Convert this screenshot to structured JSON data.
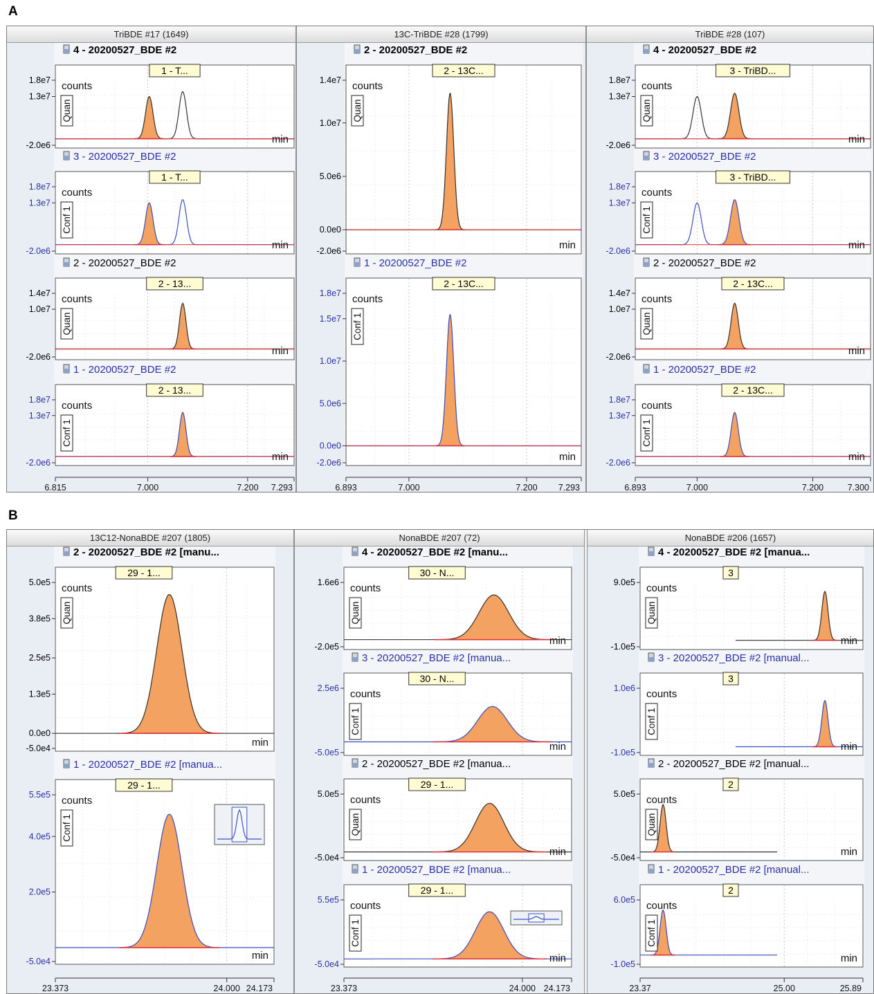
{
  "section_labels": [
    "A",
    "B"
  ],
  "colors": {
    "fill": "#f4a261",
    "fill_stroke": "#c9621e",
    "baseline": "#e0303a",
    "blue_trace": "#3a4fc2",
    "black_trace": "#333333",
    "blue_text": "#2b2fa8",
    "label_bg": "#fffbd2"
  },
  "icons": [
    "vial-icon",
    "mini-peak-thumbnail-icon"
  ],
  "chart_data": [
    {
      "type": "line",
      "section": "A",
      "title": "TriBDE #17 (1649)",
      "x_ticks": [
        "6.815",
        "7.000",
        "7.200",
        "7.293"
      ],
      "xlim": [
        6.815,
        7.293
      ],
      "panels": [
        {
          "sample": "4 - 20200527_BDE #2",
          "sample_bold": true,
          "sample_color": "#000000",
          "tag": "1 - T...",
          "ion": "Quan",
          "ylabel": "counts",
          "xunit": "min",
          "y_ticks": [
            "1.8e7",
            "1.3e7",
            "-2.0e6"
          ],
          "ylim": [
            -2000000,
            18000000
          ],
          "tick_color": "#000000",
          "trace": "black",
          "peaks": [
            {
              "x": 7.003,
              "height": 13000000,
              "sigma": 0.0075,
              "filled": true
            },
            {
              "x": 7.07,
              "height": 14500000,
              "sigma": 0.0075,
              "filled": false
            }
          ]
        },
        {
          "sample": "3 - 20200527_BDE #2",
          "sample_bold": false,
          "sample_color": "#2b2fa8",
          "tag": "1 - T...",
          "ion": "Conf 1",
          "ylabel": "counts",
          "xunit": "min",
          "y_ticks": [
            "1.8e7",
            "1.3e7",
            "-2.0e6"
          ],
          "ylim": [
            -2000000,
            18000000
          ],
          "tick_color": "#2b2fa8",
          "trace": "blue",
          "peaks": [
            {
              "x": 7.003,
              "height": 13000000,
              "sigma": 0.0075,
              "filled": true
            },
            {
              "x": 7.07,
              "height": 14000000,
              "sigma": 0.0075,
              "filled": false
            }
          ]
        },
        {
          "sample": "2 - 20200527_BDE #2",
          "sample_bold": false,
          "sample_color": "#000000",
          "tag": "2 - 13...",
          "ion": "Quan",
          "ylabel": "counts",
          "xunit": "min",
          "y_ticks": [
            "1.4e7",
            "1.0e7",
            "-2.0e6"
          ],
          "ylim": [
            -2000000,
            14000000
          ],
          "tick_color": "#000000",
          "trace": "black",
          "peaks": [
            {
              "x": 7.07,
              "height": 11500000,
              "sigma": 0.0065,
              "filled": true
            }
          ]
        },
        {
          "sample": "1 - 20200527_BDE #2",
          "sample_bold": false,
          "sample_color": "#2b2fa8",
          "tag": "2 - 13...",
          "ion": "Conf 1",
          "ylabel": "counts",
          "xunit": "min",
          "y_ticks": [
            "1.8e7",
            "1.3e7",
            "-2.0e6"
          ],
          "ylim": [
            -2000000,
            18000000
          ],
          "tick_color": "#2b2fa8",
          "trace": "blue",
          "peaks": [
            {
              "x": 7.07,
              "height": 14000000,
              "sigma": 0.0065,
              "filled": true
            }
          ]
        }
      ]
    },
    {
      "type": "line",
      "section": "A",
      "title": "13C-TriBDE #28 (1799)",
      "x_ticks": [
        "6.893",
        "7.000",
        "7.200",
        "7.293"
      ],
      "xlim": [
        6.893,
        7.293
      ],
      "panels": [
        {
          "sample": "2 - 20200527_BDE #2",
          "sample_bold": true,
          "sample_color": "#000000",
          "tag": "2 - 13C...",
          "ion": "Quan",
          "ylabel": "counts",
          "xunit": "min",
          "y_ticks": [
            "1.4e7",
            "1.0e7",
            "5.0e6",
            "0.0e0",
            "-2.0e6"
          ],
          "ylim": [
            -2000000,
            14000000
          ],
          "tick_color": "#000000",
          "trace": "black",
          "peaks": [
            {
              "x": 7.07,
              "height": 12800000,
              "sigma": 0.0062,
              "filled": true
            }
          ]
        },
        {
          "sample": "1 - 20200527_BDE #2",
          "sample_bold": false,
          "sample_color": "#2b2fa8",
          "tag": "2 - 13C...",
          "ion": "Conf 1",
          "ylabel": "counts",
          "xunit": "min",
          "y_ticks": [
            "1.8e7",
            "1.5e7",
            "1.0e7",
            "5.0e6",
            "0.0e0",
            "-2.0e6"
          ],
          "ylim": [
            -2000000,
            18000000
          ],
          "tick_color": "#2b2fa8",
          "trace": "blue",
          "peaks": [
            {
              "x": 7.07,
              "height": 15500000,
              "sigma": 0.0062,
              "filled": true
            }
          ]
        }
      ]
    },
    {
      "type": "line",
      "section": "A",
      "title": "TriBDE #28 (107)",
      "x_ticks": [
        "6.893",
        "7.000",
        "7.200",
        "7.300"
      ],
      "xlim": [
        6.893,
        7.3
      ],
      "panels": [
        {
          "sample": "4 - 20200527_BDE #2",
          "sample_bold": true,
          "sample_color": "#000000",
          "tag": "3 - TriBD...",
          "ion": "Quan",
          "ylabel": "counts",
          "xunit": "min",
          "y_ticks": [
            "1.8e7",
            "1.3e7",
            "-2.0e6"
          ],
          "ylim": [
            -2000000,
            18000000
          ],
          "tick_color": "#000000",
          "trace": "black",
          "peaks": [
            {
              "x": 7.0,
              "height": 13000000,
              "sigma": 0.0072,
              "filled": false
            },
            {
              "x": 7.065,
              "height": 14000000,
              "sigma": 0.0072,
              "filled": true
            }
          ]
        },
        {
          "sample": "3 - 20200527_BDE #2",
          "sample_bold": false,
          "sample_color": "#2b2fa8",
          "tag": "3 - TriBD...",
          "ion": "Conf 1",
          "ylabel": "counts",
          "xunit": "min",
          "y_ticks": [
            "1.8e7",
            "1.3e7",
            "-2.0e6"
          ],
          "ylim": [
            -2000000,
            18000000
          ],
          "tick_color": "#2b2fa8",
          "trace": "blue",
          "peaks": [
            {
              "x": 7.0,
              "height": 13000000,
              "sigma": 0.0072,
              "filled": false
            },
            {
              "x": 7.065,
              "height": 14000000,
              "sigma": 0.0072,
              "filled": true
            }
          ]
        },
        {
          "sample": "2 - 20200527_BDE #2",
          "sample_bold": false,
          "sample_color": "#000000",
          "tag": "2 - 13C...",
          "ion": "Quan",
          "ylabel": "counts",
          "xunit": "min",
          "y_ticks": [
            "1.4e7",
            "1.0e7",
            "-2.0e6"
          ],
          "ylim": [
            -2000000,
            14000000
          ],
          "tick_color": "#000000",
          "trace": "black",
          "peaks": [
            {
              "x": 7.065,
              "height": 11500000,
              "sigma": 0.0062,
              "filled": true
            }
          ]
        },
        {
          "sample": "1 - 20200527_BDE #2",
          "sample_bold": false,
          "sample_color": "#2b2fa8",
          "tag": "2 - 13C...",
          "ion": "Conf 1",
          "ylabel": "counts",
          "xunit": "min",
          "y_ticks": [
            "1.8e7",
            "1.3e7",
            "-2.0e6"
          ],
          "ylim": [
            -2000000,
            18000000
          ],
          "tick_color": "#2b2fa8",
          "trace": "blue",
          "peaks": [
            {
              "x": 7.065,
              "height": 14000000,
              "sigma": 0.0062,
              "filled": true
            }
          ]
        }
      ]
    },
    {
      "type": "line",
      "section": "B",
      "title": "13C12-NonaBDE  #207 (1805)",
      "x_ticks": [
        "23.373",
        "24.000",
        "24.173"
      ],
      "xlim": [
        23.373,
        24.173
      ],
      "panels": [
        {
          "sample": "2 - 20200527_BDE #2 [manu...",
          "sample_bold": true,
          "sample_color": "#000000",
          "tag": "29 - 1...",
          "ion": "Quan",
          "ylabel": "counts",
          "xunit": "min",
          "y_ticks": [
            "5.0e5",
            "3.8e5",
            "2.5e5",
            "1.3e5",
            "0.0e0",
            "-5.0e4"
          ],
          "ylim": [
            -50000,
            500000
          ],
          "tick_color": "#000000",
          "trace": "black",
          "thumbnail": false,
          "peaks": [
            {
              "x": 23.79,
              "height": 460000,
              "sigma": 0.046,
              "filled": true
            }
          ]
        },
        {
          "sample": "1 - 20200527_BDE #2 [manua...",
          "sample_bold": false,
          "sample_color": "#2b2fa8",
          "tag": "29 - 1...",
          "ion": "Conf 1",
          "ylabel": "counts",
          "xunit": "min",
          "y_ticks": [
            "5.5e5",
            "4.0e5",
            "2.0e5",
            "-5.0e4"
          ],
          "ylim": [
            -50000,
            550000
          ],
          "tick_color": "#2b2fa8",
          "trace": "blue",
          "thumbnail": true,
          "peaks": [
            {
              "x": 23.79,
              "height": 480000,
              "sigma": 0.046,
              "filled": true
            }
          ]
        }
      ]
    },
    {
      "type": "line",
      "section": "B",
      "title": "NonaBDE #207 (72)",
      "x_ticks": [
        "23.373",
        "24.000",
        "24.173"
      ],
      "xlim": [
        23.373,
        24.173
      ],
      "panels": [
        {
          "sample": "4 - 20200527_BDE #2 [manu...",
          "sample_bold": true,
          "sample_color": "#000000",
          "tag": "30 - N...",
          "ion": "Quan",
          "ylabel": "counts",
          "xunit": "min",
          "y_ticks": [
            "1.6e6",
            "-2.0e5"
          ],
          "ylim": [
            -200000,
            1600000
          ],
          "tick_color": "#000000",
          "trace": "black",
          "thumbnail": false,
          "peaks": [
            {
              "x": 23.9,
              "height": 1250000,
              "sigma": 0.052,
              "filled": true
            }
          ]
        },
        {
          "sample": "3 - 20200527_BDE #2 [manua...",
          "sample_bold": false,
          "sample_color": "#2b2fa8",
          "tag": "30 - N...",
          "ion": "Conf 1",
          "ylabel": "counts",
          "xunit": "min",
          "y_ticks": [
            "2.5e6",
            "-5.0e5"
          ],
          "ylim": [
            -500000,
            2500000
          ],
          "tick_color": "#2b2fa8",
          "trace": "blue",
          "thumbnail": false,
          "peaks": [
            {
              "x": 23.895,
              "height": 1650000,
              "sigma": 0.052,
              "filled": true
            }
          ]
        },
        {
          "sample": "2 - 20200527_BDE #2 [manua...",
          "sample_bold": false,
          "sample_color": "#000000",
          "tag": "29 - 1...",
          "ion": "Quan",
          "ylabel": "counts",
          "xunit": "min",
          "y_ticks": [
            "5.0e5",
            "-5.0e4"
          ],
          "ylim": [
            -50000,
            500000
          ],
          "tick_color": "#000000",
          "trace": "black",
          "thumbnail": false,
          "peaks": [
            {
              "x": 23.885,
              "height": 420000,
              "sigma": 0.05,
              "filled": true
            }
          ]
        },
        {
          "sample": "1 - 20200527_BDE #2 [manua...",
          "sample_bold": false,
          "sample_color": "#2b2fa8",
          "tag": "29 - 1...",
          "ion": "Conf 1",
          "ylabel": "counts",
          "xunit": "min",
          "y_ticks": [
            "5.5e5",
            "-5.0e4"
          ],
          "ylim": [
            -50000,
            550000
          ],
          "tick_color": "#2b2fa8",
          "trace": "blue",
          "thumbnail": true,
          "peaks": [
            {
              "x": 23.885,
              "height": 440000,
              "sigma": 0.05,
              "filled": true
            }
          ]
        }
      ]
    },
    {
      "type": "line",
      "section": "B",
      "title": "NonaBDE #206 (1657)",
      "x_ticks": [
        "23.37",
        "25.00",
        "25.89"
      ],
      "xlim": [
        23.37,
        25.89
      ],
      "panels": [
        {
          "sample": "4 - 20200527_BDE #2 [manua...",
          "sample_bold": true,
          "sample_color": "#000000",
          "tag": "3",
          "ion": "Quan",
          "ylabel": "counts",
          "xunit": "min",
          "y_ticks": [
            "9.0e5",
            "-1.0e5"
          ],
          "ylim": [
            -100000,
            900000
          ],
          "tick_color": "#000000",
          "trace": "black",
          "thumbnail": false,
          "trace_start": 24.45,
          "trace_end": 25.89,
          "peaks": [
            {
              "x": 25.46,
              "height": 760000,
              "sigma": 0.035,
              "filled": true
            }
          ]
        },
        {
          "sample": "3 - 20200527_BDE #2 [manual...",
          "sample_bold": false,
          "sample_color": "#2b2fa8",
          "tag": "3",
          "ion": "Conf 1",
          "ylabel": "counts",
          "xunit": "min",
          "y_ticks": [
            "1.0e6",
            "-1.0e5"
          ],
          "ylim": [
            -100000,
            1000000
          ],
          "tick_color": "#2b2fa8",
          "trace": "blue",
          "thumbnail": false,
          "trace_start": 24.45,
          "trace_end": 25.89,
          "peaks": [
            {
              "x": 25.46,
              "height": 790000,
              "sigma": 0.035,
              "filled": true
            }
          ]
        },
        {
          "sample": "2 - 20200527_BDE #2 [manual...",
          "sample_bold": false,
          "sample_color": "#000000",
          "tag": "2",
          "ion": "Quan",
          "ylabel": "counts",
          "xunit": "min",
          "y_ticks": [
            "5.0e5",
            "-5.0e4"
          ],
          "ylim": [
            -50000,
            500000
          ],
          "tick_color": "#000000",
          "trace": "black",
          "thumbnail": false,
          "trace_start": 23.37,
          "trace_end": 24.92,
          "peaks": [
            {
              "x": 23.63,
              "height": 410000,
              "sigma": 0.034,
              "filled": true
            }
          ]
        },
        {
          "sample": "1 - 20200527_BDE #2 [manual...",
          "sample_bold": false,
          "sample_color": "#2b2fa8",
          "tag": "2",
          "ion": "Conf 1",
          "ylabel": "counts",
          "xunit": "min",
          "y_ticks": [
            "6.0e5",
            "-1.0e5"
          ],
          "ylim": [
            -100000,
            600000
          ],
          "tick_color": "#2b2fa8",
          "trace": "blue",
          "thumbnail": false,
          "trace_start": 23.37,
          "trace_end": 24.92,
          "peaks": [
            {
              "x": 23.63,
              "height": 490000,
              "sigma": 0.034,
              "filled": true
            }
          ]
        }
      ]
    }
  ]
}
